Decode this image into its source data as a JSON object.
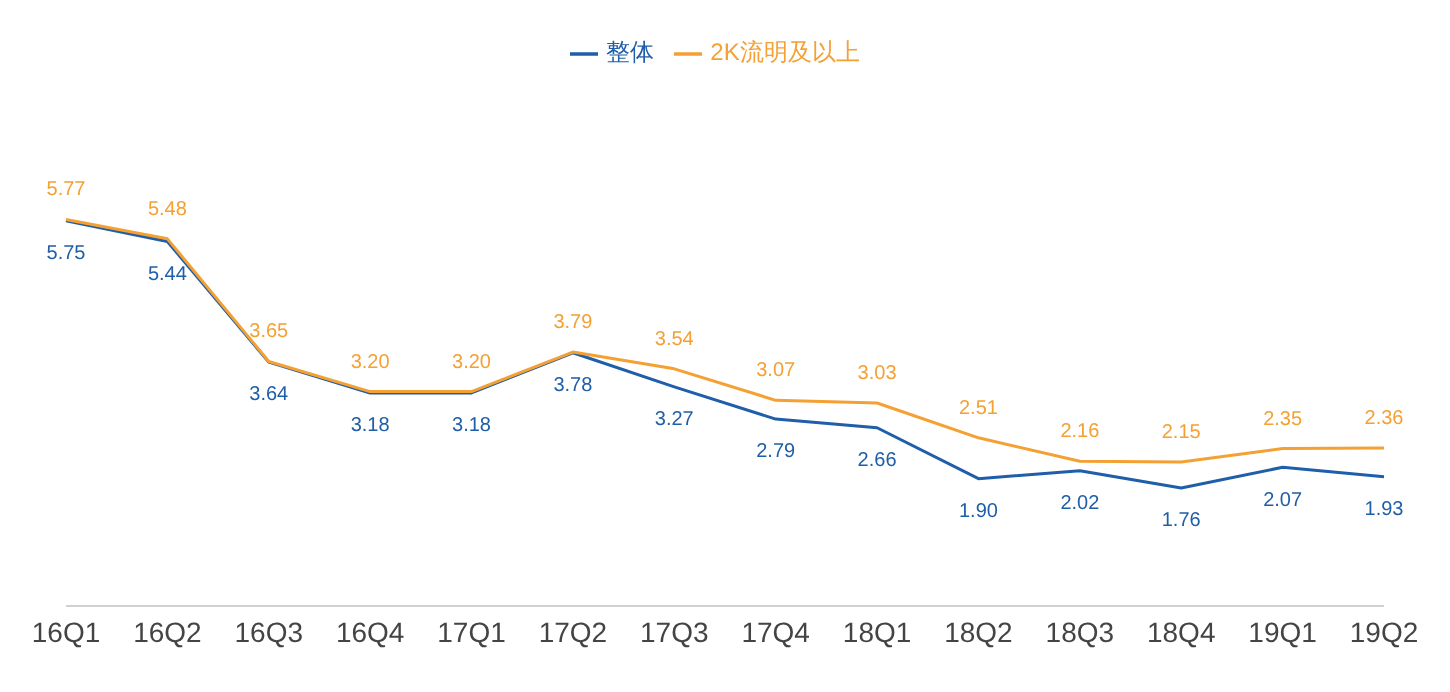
{
  "chart_data": {
    "type": "line",
    "categories": [
      "16Q1",
      "16Q2",
      "16Q3",
      "16Q4",
      "17Q1",
      "17Q2",
      "17Q3",
      "17Q4",
      "18Q1",
      "18Q2",
      "18Q3",
      "18Q4",
      "19Q1",
      "19Q2"
    ],
    "series": [
      {
        "name": "整体",
        "color": "#1f5ea8",
        "values": [
          5.75,
          5.44,
          3.64,
          3.18,
          3.18,
          3.78,
          3.27,
          2.79,
          2.66,
          1.9,
          2.02,
          1.76,
          2.07,
          1.93
        ],
        "value_labels": [
          "5.75",
          "5.44",
          "3.64",
          "3.18",
          "3.18",
          "3.78",
          "3.27",
          "2.79",
          "2.66",
          "1.90",
          "2.02",
          "1.76",
          "2.07",
          "1.93"
        ]
      },
      {
        "name": "2K流明及以上",
        "color": "#f4a033",
        "values": [
          5.77,
          5.48,
          3.65,
          3.2,
          3.2,
          3.79,
          3.54,
          3.07,
          3.03,
          2.51,
          2.16,
          2.15,
          2.35,
          2.36
        ],
        "value_labels": [
          "5.77",
          "5.48",
          "3.65",
          "3.20",
          "3.20",
          "3.79",
          "3.54",
          "3.07",
          "3.03",
          "2.51",
          "2.16",
          "2.15",
          "2.35",
          "2.36"
        ]
      }
    ],
    "legend": "top",
    "marker": "none",
    "tick_labels": "x"
  }
}
